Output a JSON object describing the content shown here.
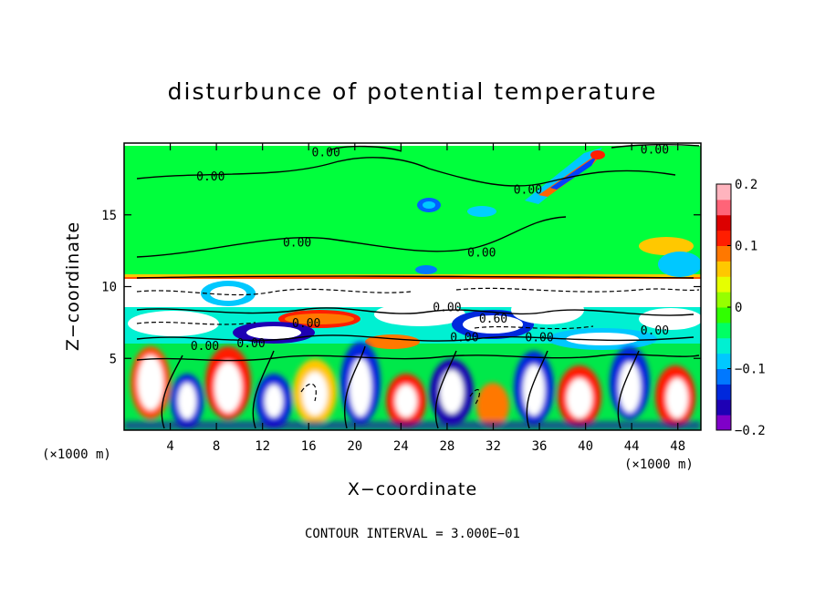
{
  "chart_data": {
    "type": "heatmap",
    "title": "disturbunce of potential temperature",
    "xlabel": "X−coordinate",
    "ylabel": "Z−coordinate",
    "x_unit_left": "(×1000 m)",
    "x_unit_right": "(×1000 m)",
    "xlim": [
      0,
      50
    ],
    "ylim": [
      0,
      20
    ],
    "x_ticks": [
      4,
      8,
      12,
      16,
      20,
      24,
      28,
      32,
      36,
      40,
      44,
      48
    ],
    "y_ticks": [
      5,
      10,
      15
    ],
    "colorbar": {
      "range": [
        -0.2,
        0.2
      ],
      "tick_values": [
        0.2,
        0.1,
        0,
        -0.1,
        -0.2
      ],
      "tick_labels": [
        "0.2",
        "0.1",
        "0",
        "−0.1",
        "−0.2"
      ],
      "colors": [
        "#7f00c8",
        "#1e00b4",
        "#0028dc",
        "#0078ff",
        "#00c8ff",
        "#00f0d2",
        "#00ff64",
        "#30ff00",
        "#96ff00",
        "#e6ff00",
        "#ffc800",
        "#ff7800",
        "#ff1e00",
        "#dc0000",
        "#ff6478",
        "#ffb4be"
      ]
    },
    "contour_interval": "CONTOUR INTERVAL = 3.000E−01",
    "contour_labels": [
      {
        "text": "0.00",
        "x": 17.5,
        "y": 19.4
      },
      {
        "text": "0.00",
        "x": 46.0,
        "y": 19.6
      },
      {
        "text": "0.00",
        "x": 7.5,
        "y": 17.7
      },
      {
        "text": "0.00",
        "x": 35.0,
        "y": 16.8
      },
      {
        "text": "0.00",
        "x": 15.0,
        "y": 13.1
      },
      {
        "text": "0.00",
        "x": 31.0,
        "y": 12.4
      },
      {
        "text": "0.00",
        "x": 28.0,
        "y": 8.6
      },
      {
        "text": "0.60",
        "x": 32.0,
        "y": 7.8
      },
      {
        "text": "0.00",
        "x": 15.8,
        "y": 7.5
      },
      {
        "text": "0.00",
        "x": 46.0,
        "y": 7.0
      },
      {
        "text": "0.00",
        "x": 7.0,
        "y": 5.9
      },
      {
        "text": "0.00",
        "x": 11.0,
        "y": 6.1
      },
      {
        "text": "0.00",
        "x": 29.5,
        "y": 6.5
      },
      {
        "text": "0.00",
        "x": 36.0,
        "y": 6.5
      }
    ]
  },
  "colors": {
    "background": "#ffffff",
    "upper_layer": "#00ff3c"
  }
}
